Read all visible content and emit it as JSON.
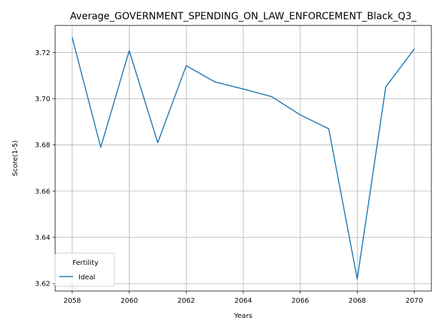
{
  "chart_data": {
    "type": "line",
    "title": "Average_GOVERNMENT_SPENDING_ON_LAW_ENFORCEMENT_Black_Q3_",
    "xlabel": "Years",
    "ylabel": "Score(1-5)",
    "x": [
      2058,
      2059,
      2060,
      2061,
      2062,
      2063,
      2064,
      2065,
      2066,
      2067,
      2068,
      2069,
      2070
    ],
    "series": [
      {
        "name": "Ideal",
        "color": "#1f77b4",
        "values": [
          3.7264,
          3.679,
          3.7208,
          3.681,
          3.7143,
          3.7073,
          3.7042,
          3.7009,
          3.693,
          3.687,
          3.622,
          3.7051,
          3.7215
        ]
      }
    ],
    "xlim": [
      2057.4,
      2070.6
    ],
    "ylim": [
      3.6168,
      3.7317
    ],
    "xticks": [
      2058,
      2060,
      2062,
      2064,
      2066,
      2068,
      2070
    ],
    "yticks": [
      3.62,
      3.64,
      3.66,
      3.68,
      3.7,
      3.72
    ],
    "ytick_labels": [
      "3.62",
      "3.64",
      "3.66",
      "3.68",
      "3.70",
      "3.72"
    ],
    "grid": true,
    "legend": {
      "title": "Fertility",
      "position": "lower-left"
    }
  }
}
